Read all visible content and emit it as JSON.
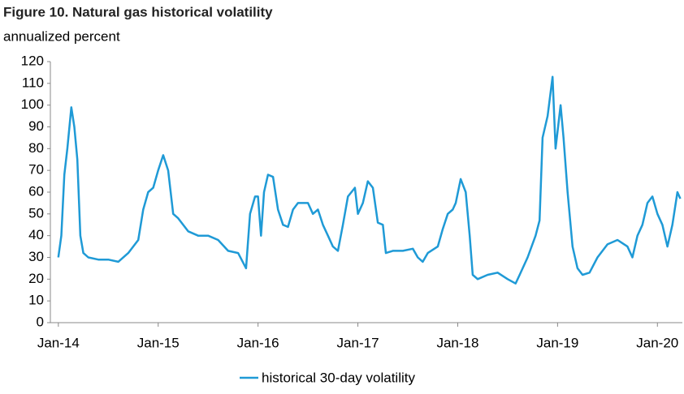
{
  "chart_data": {
    "type": "line",
    "title": "Figure 10. Natural gas historical volatility",
    "subtitle": "annualized percent",
    "x": [
      2014.0,
      2014.03,
      2014.06,
      2014.09,
      2014.13,
      2014.16,
      2014.19,
      2014.22,
      2014.25,
      2014.3,
      2014.4,
      2014.5,
      2014.6,
      2014.7,
      2014.8,
      2014.85,
      2014.9,
      2014.95,
      2015.0,
      2015.05,
      2015.1,
      2015.15,
      2015.2,
      2015.3,
      2015.4,
      2015.5,
      2015.6,
      2015.7,
      2015.8,
      2015.88,
      2015.92,
      2015.97,
      2016.0,
      2016.03,
      2016.06,
      2016.1,
      2016.15,
      2016.2,
      2016.25,
      2016.3,
      2016.35,
      2016.4,
      2016.5,
      2016.55,
      2016.6,
      2016.65,
      2016.7,
      2016.75,
      2016.8,
      2016.85,
      2016.9,
      2016.97,
      2017.0,
      2017.05,
      2017.1,
      2017.15,
      2017.2,
      2017.25,
      2017.28,
      2017.35,
      2017.45,
      2017.55,
      2017.6,
      2017.65,
      2017.7,
      2017.8,
      2017.85,
      2017.9,
      2017.95,
      2017.98,
      2018.03,
      2018.08,
      2018.12,
      2018.15,
      2018.2,
      2018.3,
      2018.4,
      2018.5,
      2018.58,
      2018.62,
      2018.7,
      2018.78,
      2018.82,
      2018.85,
      2018.9,
      2018.95,
      2018.98,
      2019.03,
      2019.06,
      2019.1,
      2019.15,
      2019.2,
      2019.25,
      2019.32,
      2019.4,
      2019.5,
      2019.6,
      2019.7,
      2019.75,
      2019.8,
      2019.85,
      2019.9,
      2019.95,
      2020.0,
      2020.05,
      2020.1,
      2020.15,
      2020.2,
      2020.23
    ],
    "series": [
      {
        "name": "historical 30-day volatility",
        "color": "#1f9ad6",
        "values": [
          30,
          40,
          68,
          80,
          99,
          90,
          75,
          40,
          32,
          30,
          29,
          29,
          28,
          32,
          38,
          52,
          60,
          62,
          70,
          77,
          70,
          50,
          48,
          42,
          40,
          40,
          38,
          33,
          32,
          25,
          50,
          58,
          58,
          40,
          60,
          68,
          67,
          52,
          45,
          44,
          52,
          55,
          55,
          50,
          52,
          45,
          40,
          35,
          33,
          45,
          58,
          62,
          50,
          55,
          65,
          62,
          46,
          45,
          32,
          33,
          33,
          34,
          30,
          28,
          32,
          35,
          43,
          50,
          52,
          55,
          66,
          60,
          40,
          22,
          20,
          22,
          23,
          20,
          18,
          22,
          30,
          40,
          47,
          85,
          95,
          113,
          80,
          100,
          85,
          60,
          35,
          25,
          22,
          23,
          30,
          36,
          38,
          35,
          30,
          40,
          45,
          55,
          58,
          50,
          45,
          35,
          45,
          60,
          57
        ]
      }
    ],
    "xlim": [
      2013.92,
      2020.25
    ],
    "xticks": [
      {
        "value": 2014,
        "label": "Jan-14"
      },
      {
        "value": 2015,
        "label": "Jan-15"
      },
      {
        "value": 2016,
        "label": "Jan-16"
      },
      {
        "value": 2017,
        "label": "Jan-17"
      },
      {
        "value": 2018,
        "label": "Jan-18"
      },
      {
        "value": 2019,
        "label": "Jan-19"
      },
      {
        "value": 2020,
        "label": "Jan-20"
      }
    ],
    "ylim": [
      0,
      120
    ],
    "yticks": [
      0,
      10,
      20,
      30,
      40,
      50,
      60,
      70,
      80,
      90,
      100,
      110,
      120
    ],
    "legend": "bottom"
  }
}
